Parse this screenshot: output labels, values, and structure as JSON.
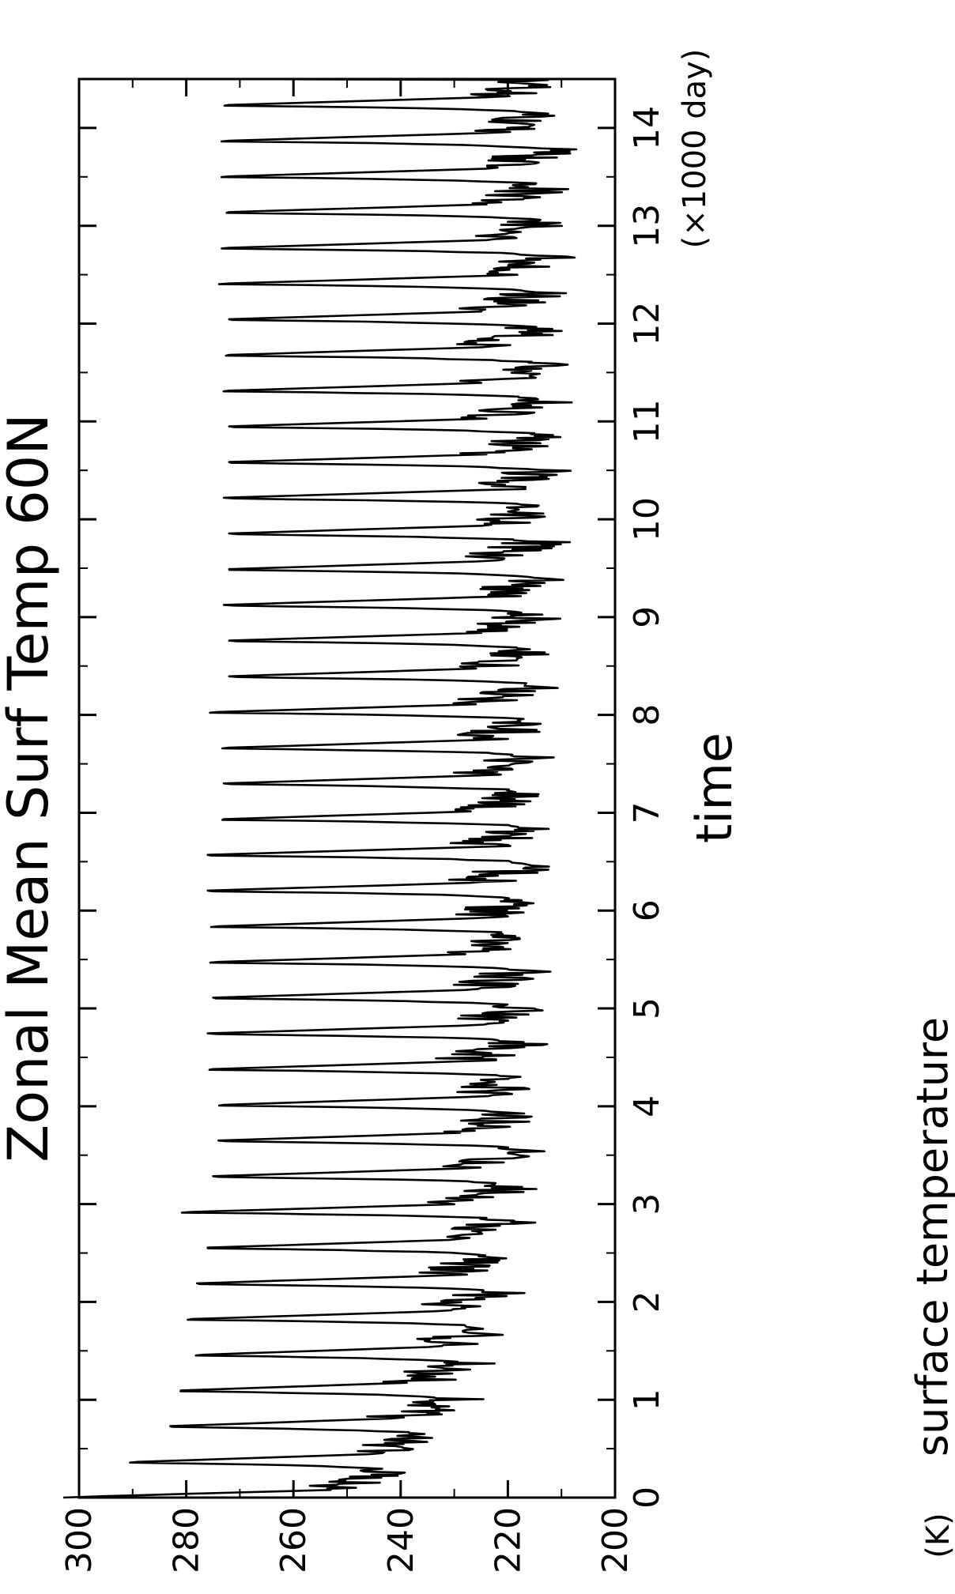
{
  "chart_data": {
    "type": "line",
    "title": "Zonal Mean Surf Temp 60N",
    "xlabel": "time",
    "ylabel": "surface temperature",
    "x_unit": "(×1000 day)",
    "y_unit": "(K)",
    "xlim": [
      0,
      14.5
    ],
    "ylim": [
      200,
      300
    ],
    "x_ticks": [
      0,
      1,
      2,
      3,
      4,
      5,
      6,
      7,
      8,
      9,
      10,
      11,
      12,
      13,
      14
    ],
    "y_ticks": [
      200,
      220,
      240,
      260,
      280,
      300
    ],
    "grid": false,
    "line_color": "#000000",
    "cycle_period": 0.365,
    "series": [
      {
        "cycle_start": [
          0,
          0.365,
          0.73,
          1.095,
          1.46,
          1.825,
          2.19,
          2.555,
          2.92,
          3.285,
          3.65,
          4.015,
          4.38,
          4.745,
          5.11,
          5.475,
          5.84,
          6.205,
          6.57,
          6.935,
          7.3,
          7.665,
          8.03,
          8.395,
          8.76,
          9.125,
          9.49,
          9.855,
          10.22,
          10.585,
          10.95,
          11.315,
          11.68,
          12.045,
          12.41,
          12.775,
          13.14,
          13.505,
          13.87,
          14.235
        ],
        "peak": [
          305,
          289,
          283,
          281,
          277,
          279,
          278,
          276,
          279,
          275,
          274,
          273,
          275,
          276,
          275,
          274,
          274,
          276,
          276,
          273,
          273,
          272,
          274,
          272,
          272,
          273,
          272,
          272,
          273,
          272,
          272,
          272,
          272,
          272,
          272,
          272,
          272,
          272,
          272,
          272
        ],
        "trough": [
          240,
          233,
          229,
          226,
          222,
          221,
          220,
          218,
          217,
          216,
          216,
          215,
          216,
          216,
          215,
          215,
          215,
          214,
          214,
          214,
          214,
          213,
          213,
          213,
          212,
          213,
          213,
          212,
          212,
          211,
          211,
          212,
          212,
          212,
          211,
          211,
          211,
          211,
          211,
          211
        ]
      }
    ]
  }
}
